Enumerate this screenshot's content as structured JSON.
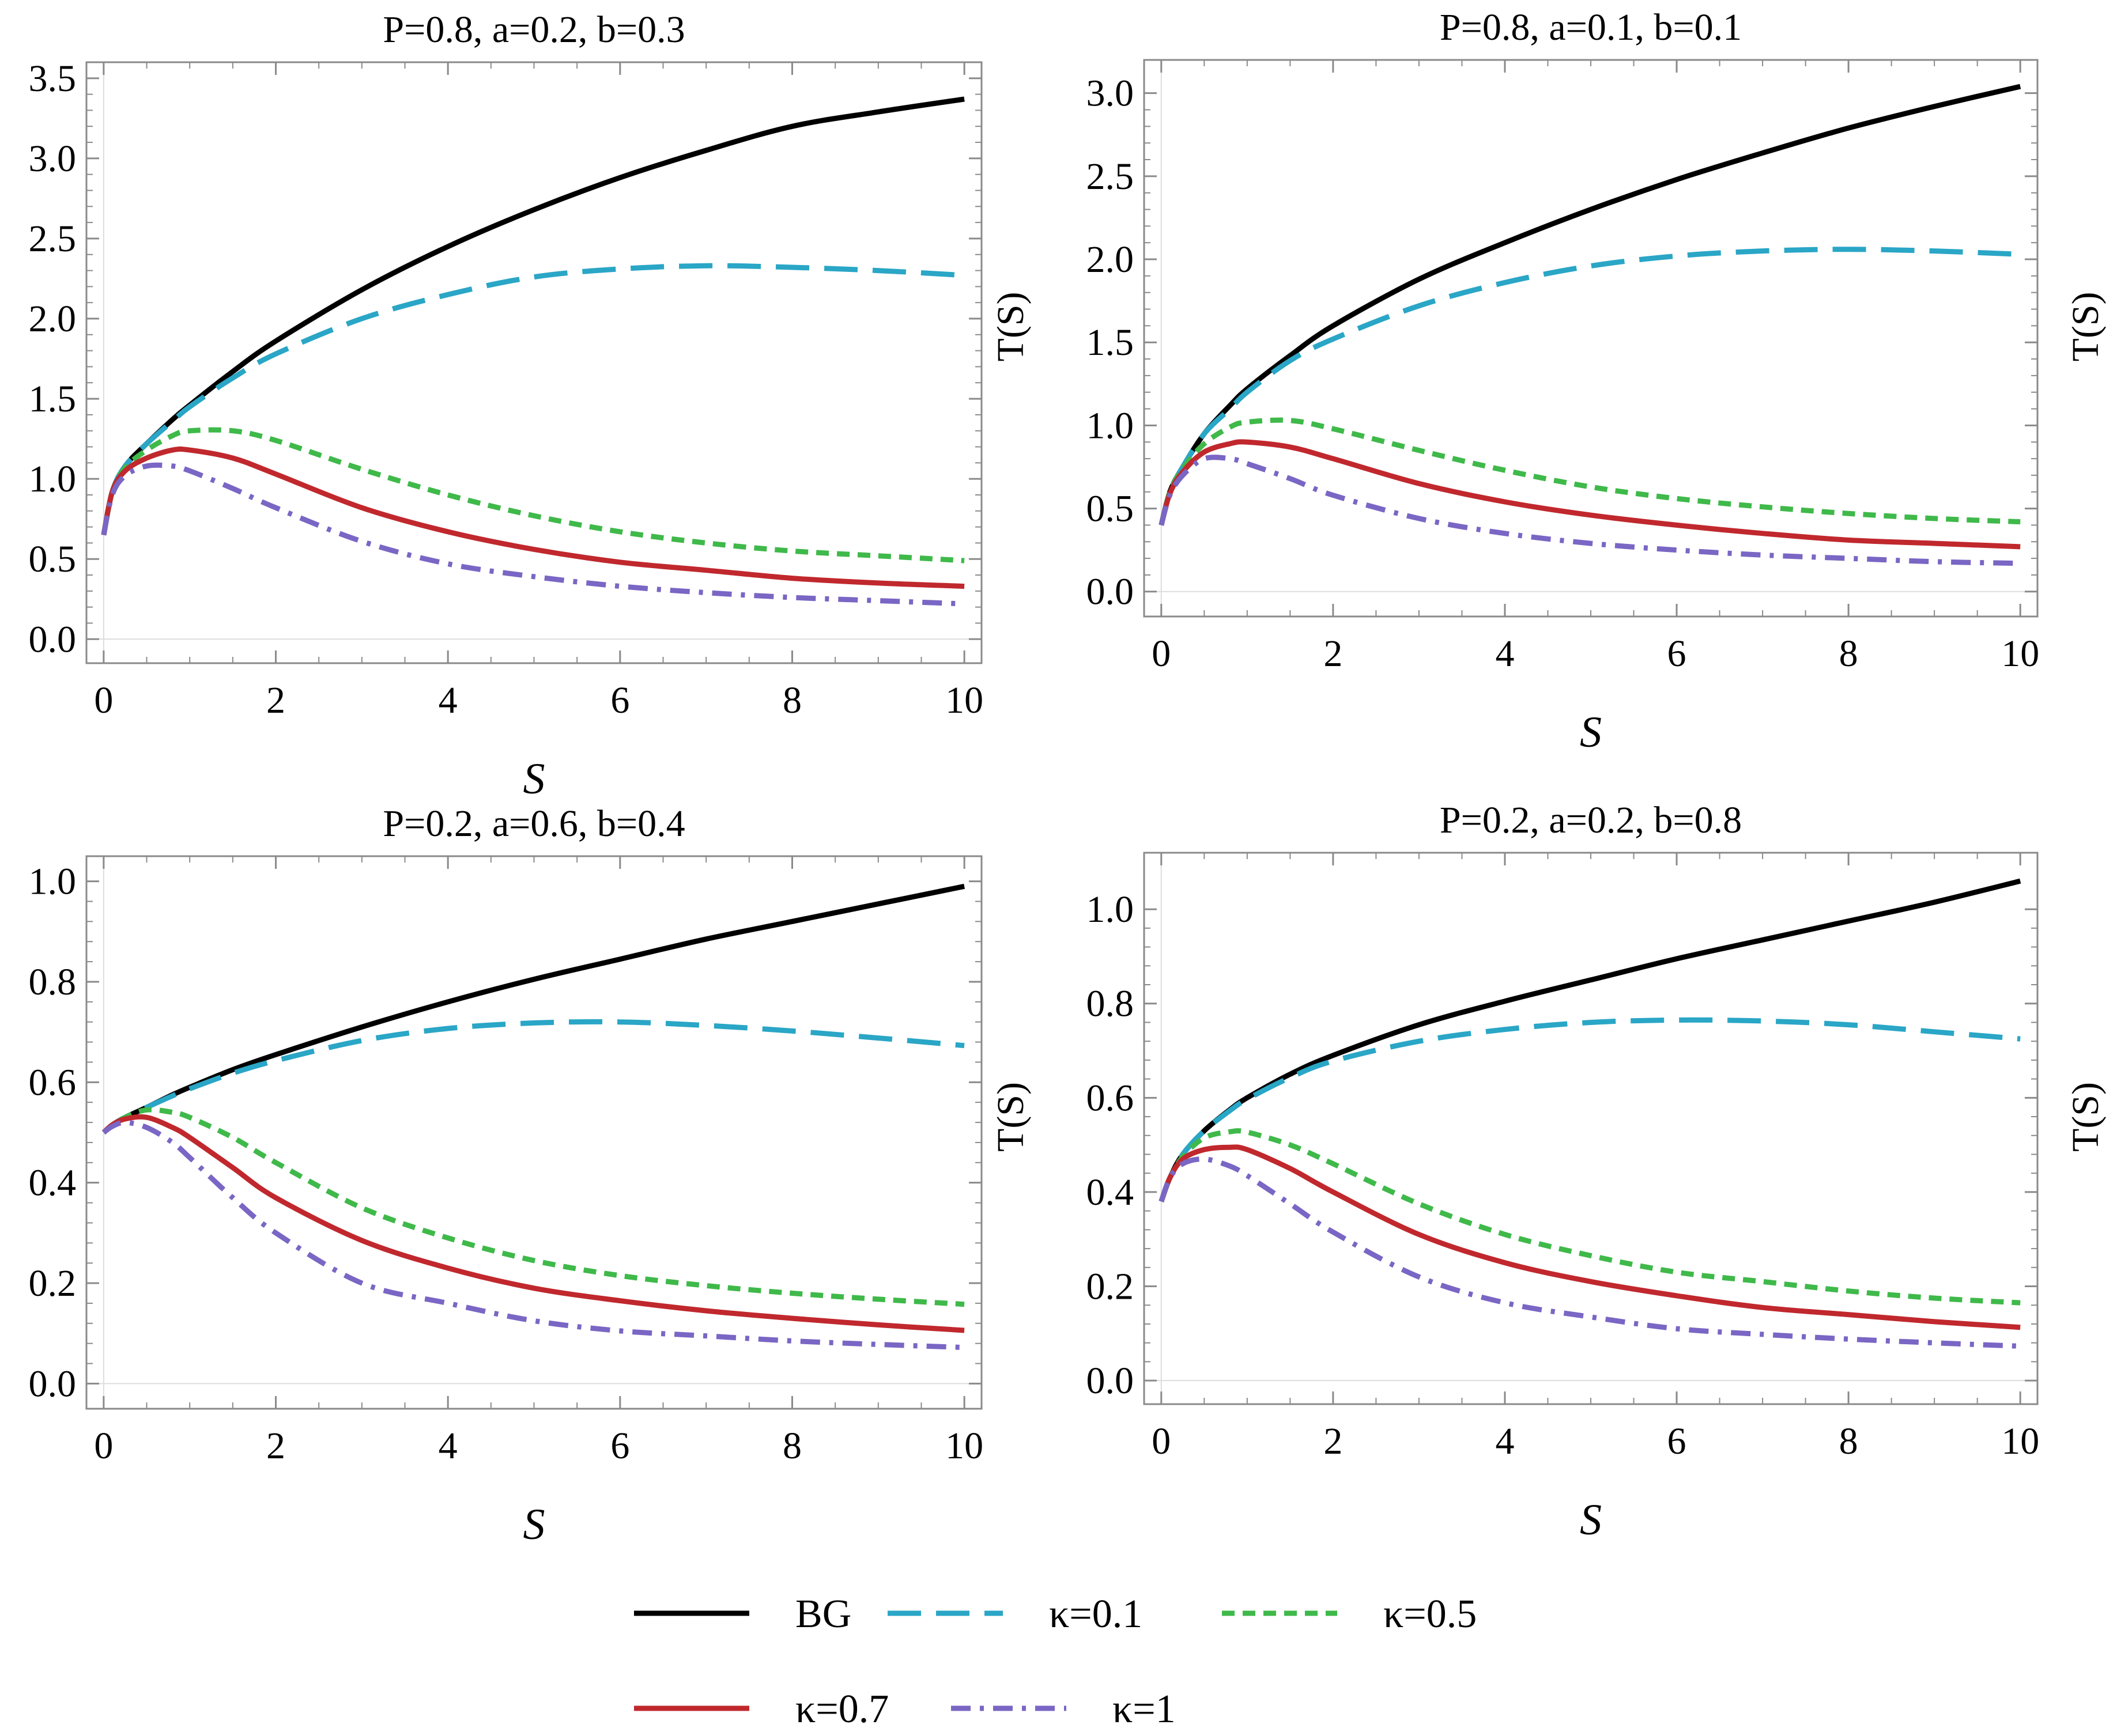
{
  "colors": {
    "BG": "#000000",
    "k01": "#2aa6c6",
    "k05": "#3fb94a",
    "k07": "#c0282d",
    "k1": "#7a66c4",
    "frame": "#8a8a8a"
  },
  "legend": [
    {
      "key": "BG",
      "label": "BG",
      "style": "solid"
    },
    {
      "key": "k01",
      "label": "κ=0.1",
      "style": "dashed"
    },
    {
      "key": "k05",
      "label": "κ=0.5",
      "style": "dotted"
    },
    {
      "key": "k07",
      "label": "κ=0.7",
      "style": "solid"
    },
    {
      "key": "k1",
      "label": "κ=1",
      "style": "dashdot"
    }
  ],
  "chart_data": [
    {
      "type": "line",
      "title": "P=0.8, a=0.2, b=0.3",
      "xlabel": "S",
      "ylabel": "",
      "xlim": [
        -0.2,
        10.2
      ],
      "ylim": [
        -0.15,
        3.6
      ],
      "xticks": [
        0,
        2,
        4,
        6,
        8,
        10
      ],
      "yticks": [
        0.0,
        0.5,
        1.0,
        1.5,
        2.0,
        2.5,
        3.0,
        3.5
      ],
      "ytick_labels": [
        "0.0",
        "0.5",
        "1.0",
        "1.5",
        "2.0",
        "2.5",
        "3.0",
        "3.5"
      ],
      "x": [
        0,
        0.1,
        0.25,
        0.5,
        0.8,
        1,
        1.5,
        2,
        3,
        4,
        5,
        6,
        7,
        8,
        9,
        10
      ],
      "series": [
        {
          "key": "BG",
          "name": "BG",
          "values": [
            0.65,
            0.92,
            1.08,
            1.22,
            1.37,
            1.46,
            1.67,
            1.86,
            2.18,
            2.45,
            2.68,
            2.88,
            3.05,
            3.2,
            3.29,
            3.37
          ]
        },
        {
          "key": "k01",
          "name": "κ=0.1",
          "values": [
            0.65,
            0.92,
            1.08,
            1.22,
            1.36,
            1.45,
            1.63,
            1.78,
            2.0,
            2.15,
            2.26,
            2.31,
            2.33,
            2.32,
            2.3,
            2.27
          ]
        },
        {
          "key": "k05",
          "name": "κ=0.5",
          "values": [
            0.65,
            0.92,
            1.07,
            1.18,
            1.27,
            1.3,
            1.3,
            1.24,
            1.06,
            0.9,
            0.77,
            0.67,
            0.6,
            0.55,
            0.52,
            0.49
          ]
        },
        {
          "key": "k07",
          "name": "κ=0.7",
          "values": [
            0.65,
            0.92,
            1.05,
            1.13,
            1.18,
            1.18,
            1.13,
            1.03,
            0.82,
            0.67,
            0.56,
            0.48,
            0.43,
            0.38,
            0.35,
            0.33
          ]
        },
        {
          "key": "k1",
          "name": "κ=1",
          "values": [
            0.65,
            0.9,
            1.02,
            1.08,
            1.08,
            1.05,
            0.94,
            0.82,
            0.61,
            0.47,
            0.39,
            0.33,
            0.29,
            0.26,
            0.24,
            0.22
          ]
        }
      ]
    },
    {
      "type": "line",
      "title": "P=0.8, a=0.1, b=0.1",
      "xlabel": "S",
      "ylabel": "T(S)",
      "xlim": [
        -0.2,
        10.2
      ],
      "ylim": [
        -0.15,
        3.2
      ],
      "xticks": [
        0,
        2,
        4,
        6,
        8,
        10
      ],
      "yticks": [
        0.0,
        0.5,
        1.0,
        1.5,
        2.0,
        2.5,
        3.0
      ],
      "ytick_labels": [
        "0.0",
        "0.5",
        "1.0",
        "1.5",
        "2.0",
        "2.5",
        "3.0"
      ],
      "x": [
        0,
        0.1,
        0.25,
        0.5,
        0.8,
        1,
        1.5,
        2,
        3,
        4,
        5,
        6,
        7,
        8,
        9,
        10
      ],
      "series": [
        {
          "key": "BG",
          "name": "BG",
          "values": [
            0.4,
            0.6,
            0.75,
            0.95,
            1.12,
            1.22,
            1.42,
            1.6,
            1.88,
            2.1,
            2.3,
            2.48,
            2.64,
            2.79,
            2.92,
            3.04
          ]
        },
        {
          "key": "k01",
          "name": "κ=0.1",
          "values": [
            0.4,
            0.6,
            0.75,
            0.95,
            1.1,
            1.2,
            1.39,
            1.52,
            1.72,
            1.86,
            1.96,
            2.02,
            2.05,
            2.06,
            2.05,
            2.03
          ]
        },
        {
          "key": "k05",
          "name": "κ=0.5",
          "values": [
            0.4,
            0.6,
            0.74,
            0.89,
            0.99,
            1.02,
            1.03,
            0.98,
            0.85,
            0.73,
            0.63,
            0.56,
            0.51,
            0.47,
            0.44,
            0.42
          ]
        },
        {
          "key": "k07",
          "name": "κ=0.7",
          "values": [
            0.4,
            0.59,
            0.72,
            0.84,
            0.89,
            0.9,
            0.87,
            0.8,
            0.65,
            0.54,
            0.46,
            0.4,
            0.35,
            0.31,
            0.29,
            0.27
          ]
        },
        {
          "key": "k1",
          "name": "κ=1",
          "values": [
            0.4,
            0.58,
            0.7,
            0.8,
            0.8,
            0.77,
            0.68,
            0.58,
            0.44,
            0.35,
            0.29,
            0.25,
            0.22,
            0.2,
            0.18,
            0.17
          ]
        }
      ]
    },
    {
      "type": "line",
      "title": "P=0.2, a=0.6, b=0.4",
      "xlabel": "S",
      "ylabel": "",
      "xlim": [
        -0.2,
        10.2
      ],
      "ylim": [
        -0.05,
        1.05
      ],
      "xticks": [
        0,
        2,
        4,
        6,
        8,
        10
      ],
      "yticks": [
        0.0,
        0.2,
        0.4,
        0.6,
        0.8,
        1.0
      ],
      "ytick_labels": [
        "0.0",
        "0.2",
        "0.4",
        "0.6",
        "0.8",
        "1.0"
      ],
      "x": [
        0,
        0.1,
        0.25,
        0.5,
        0.8,
        1,
        1.5,
        2,
        3,
        4,
        5,
        6,
        7,
        8,
        9,
        10
      ],
      "series": [
        {
          "key": "BG",
          "name": "BG",
          "values": [
            0.5,
            0.515,
            0.53,
            0.55,
            0.575,
            0.59,
            0.625,
            0.655,
            0.71,
            0.76,
            0.805,
            0.845,
            0.885,
            0.92,
            0.955,
            0.99
          ]
        },
        {
          "key": "k01",
          "name": "κ=0.1",
          "values": [
            0.5,
            0.515,
            0.53,
            0.55,
            0.573,
            0.587,
            0.618,
            0.643,
            0.683,
            0.707,
            0.718,
            0.72,
            0.713,
            0.702,
            0.688,
            0.673
          ]
        },
        {
          "key": "k05",
          "name": "κ=0.5",
          "values": [
            0.5,
            0.515,
            0.53,
            0.545,
            0.54,
            0.53,
            0.49,
            0.44,
            0.35,
            0.29,
            0.245,
            0.215,
            0.195,
            0.18,
            0.168,
            0.158
          ]
        },
        {
          "key": "k07",
          "name": "κ=0.7",
          "values": [
            0.5,
            0.515,
            0.527,
            0.53,
            0.51,
            0.49,
            0.43,
            0.37,
            0.285,
            0.23,
            0.19,
            0.165,
            0.145,
            0.13,
            0.117,
            0.106
          ]
        },
        {
          "key": "k1",
          "name": "κ=1",
          "values": [
            0.5,
            0.512,
            0.52,
            0.51,
            0.48,
            0.45,
            0.37,
            0.3,
            0.2,
            0.16,
            0.125,
            0.105,
            0.095,
            0.085,
            0.078,
            0.072
          ]
        }
      ]
    },
    {
      "type": "line",
      "title": "P=0.2, a=0.2, b=0.8",
      "xlabel": "S",
      "ylabel": "T(S)",
      "xlim": [
        -0.2,
        10.2
      ],
      "ylim": [
        -0.05,
        1.12
      ],
      "xticks": [
        0,
        2,
        4,
        6,
        8,
        10
      ],
      "yticks": [
        0.0,
        0.2,
        0.4,
        0.6,
        0.8,
        1.0
      ],
      "ytick_labels": [
        "0.0",
        "0.2",
        "0.4",
        "0.6",
        "0.8",
        "1.0"
      ],
      "x": [
        0,
        0.1,
        0.25,
        0.5,
        0.8,
        1,
        1.5,
        2,
        3,
        4,
        5,
        6,
        7,
        8,
        9,
        10
      ],
      "series": [
        {
          "key": "BG",
          "name": "BG",
          "values": [
            0.38,
            0.43,
            0.48,
            0.53,
            0.575,
            0.6,
            0.65,
            0.69,
            0.755,
            0.805,
            0.85,
            0.895,
            0.935,
            0.975,
            1.015,
            1.06
          ]
        },
        {
          "key": "k01",
          "name": "κ=0.1",
          "values": [
            0.38,
            0.43,
            0.48,
            0.53,
            0.573,
            0.597,
            0.643,
            0.678,
            0.72,
            0.745,
            0.76,
            0.765,
            0.763,
            0.755,
            0.74,
            0.725
          ]
        },
        {
          "key": "k05",
          "name": "κ=0.5",
          "values": [
            0.38,
            0.43,
            0.475,
            0.515,
            0.528,
            0.527,
            0.5,
            0.46,
            0.375,
            0.31,
            0.265,
            0.23,
            0.21,
            0.19,
            0.175,
            0.165
          ]
        },
        {
          "key": "k07",
          "name": "κ=0.7",
          "values": [
            0.38,
            0.43,
            0.47,
            0.49,
            0.495,
            0.49,
            0.45,
            0.4,
            0.31,
            0.25,
            0.21,
            0.18,
            0.155,
            0.14,
            0.125,
            0.113
          ]
        },
        {
          "key": "k1",
          "name": "κ=1",
          "values": [
            0.38,
            0.43,
            0.46,
            0.47,
            0.455,
            0.435,
            0.375,
            0.315,
            0.22,
            0.165,
            0.135,
            0.11,
            0.098,
            0.088,
            0.08,
            0.073
          ]
        }
      ]
    }
  ]
}
